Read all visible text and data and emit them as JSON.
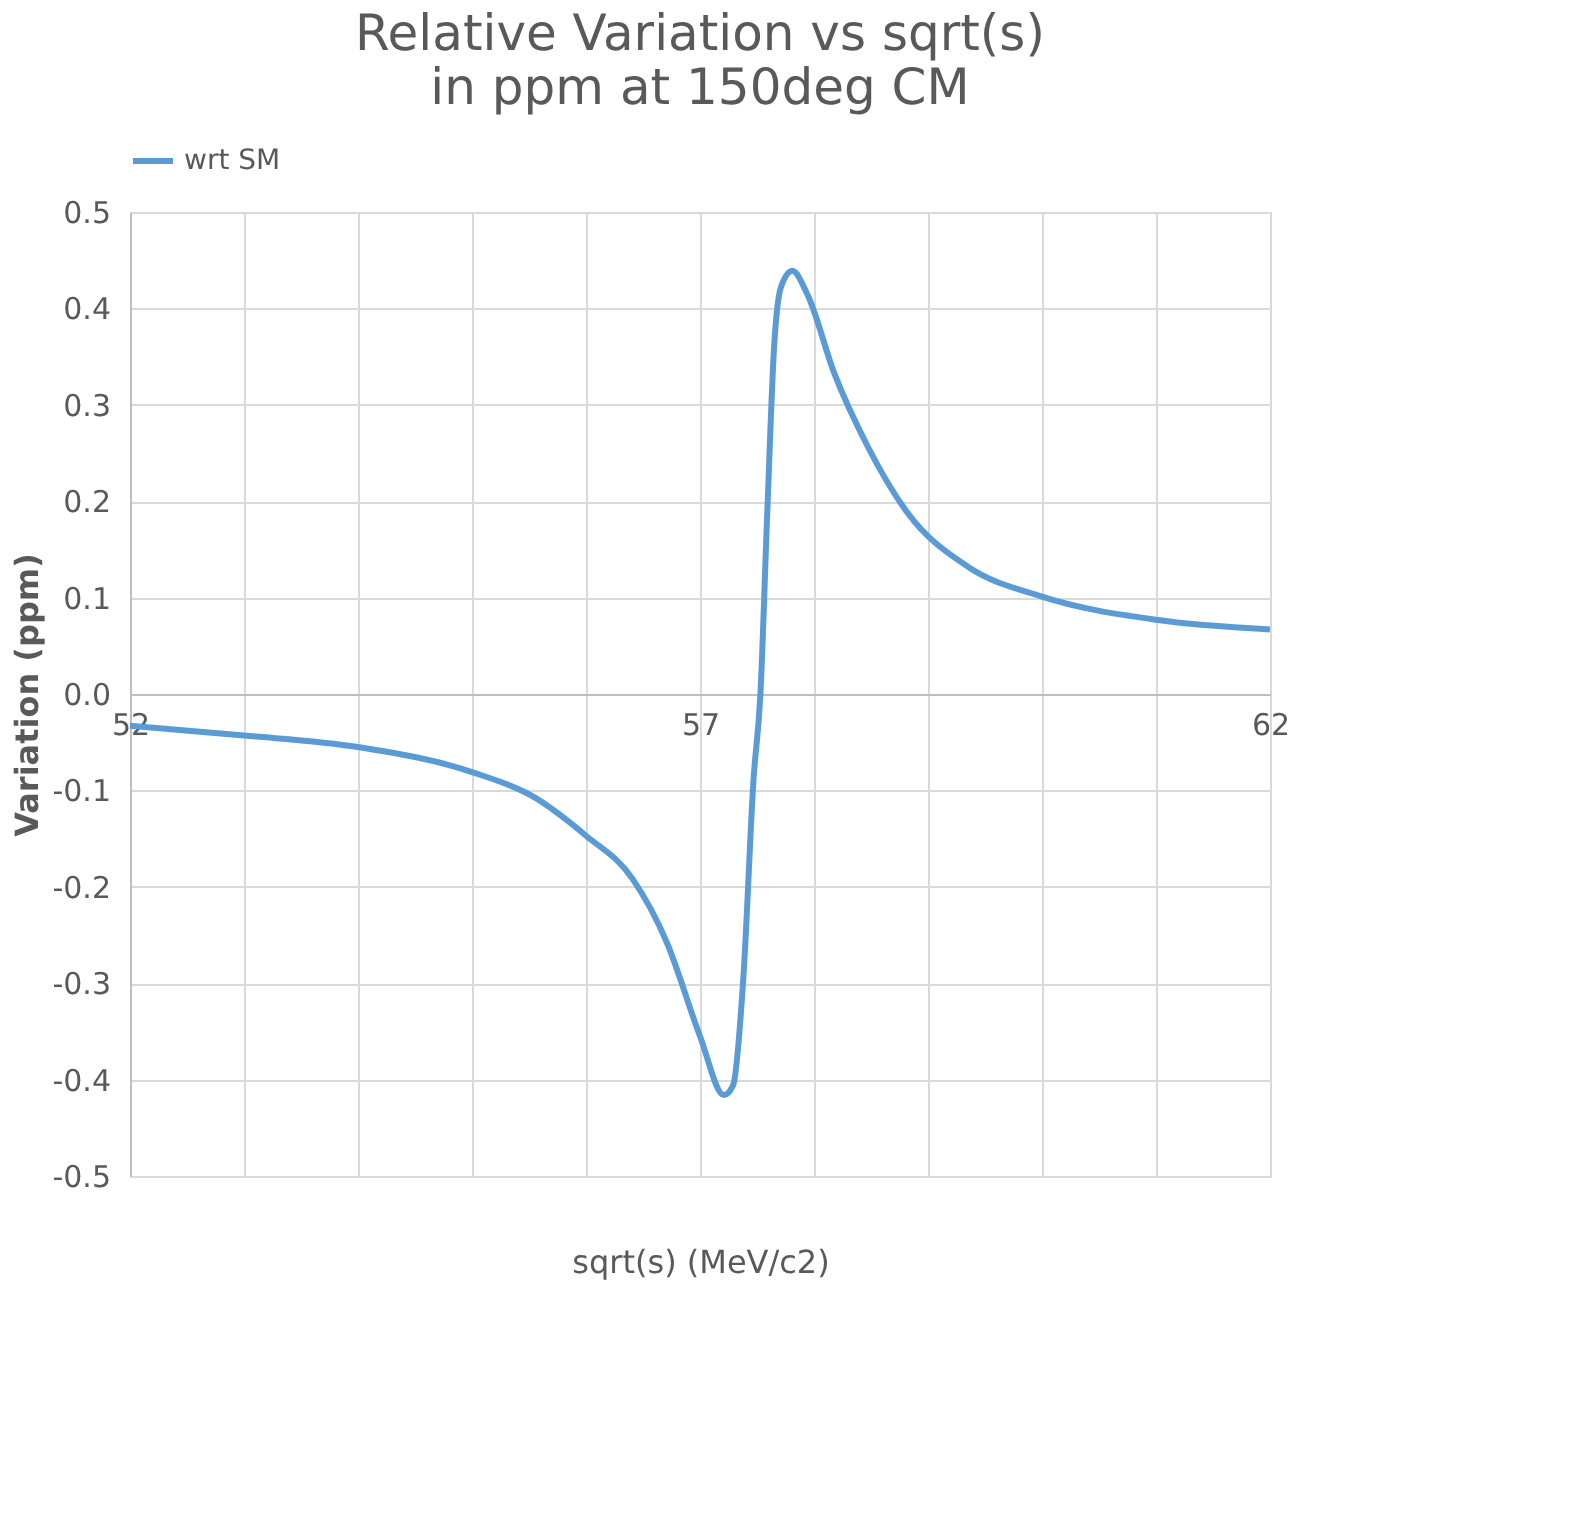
{
  "chart_data": {
    "type": "line",
    "title": [
      "Relative Variation vs sqrt(s)",
      "in ppm at 150deg CM"
    ],
    "xlabel": "sqrt(s) (MeV/c2)",
    "ylabel": "Variation (ppm)",
    "xlim": [
      52,
      62
    ],
    "xticks": [
      52,
      {
        "value": 53,
        "label": null
      },
      {
        "value": 54,
        "label": null
      },
      {
        "value": 55,
        "label": null
      },
      {
        "value": 56,
        "label": null
      },
      57,
      {
        "value": 58,
        "label": null
      },
      {
        "value": 59,
        "label": null
      },
      {
        "value": 60,
        "label": null
      },
      {
        "value": 61,
        "label": null
      },
      62
    ],
    "ylim": [
      -0.5,
      0.5
    ],
    "yticks": [
      -0.5,
      -0.4,
      -0.3,
      -0.2,
      -0.1,
      {
        "value": 0,
        "label": "0.0"
      },
      0.1,
      0.2,
      0.3,
      0.4,
      0.5
    ],
    "grid": true,
    "legend": "top",
    "marker": "none",
    "line_style": "solid",
    "series": [
      {
        "name": "wrt SM",
        "color": "#5b9bd5",
        "x": [
          52,
          53,
          54,
          55,
          55.53,
          56,
          56.41,
          56.71,
          57,
          57.21,
          57.29,
          57.38,
          57.47,
          57.53,
          57.59,
          57.65,
          57.71,
          57.81,
          57.94,
          58.18,
          58.47,
          58.82,
          59.35,
          60,
          61,
          62
        ],
        "values": [
          -0.033,
          -0.043,
          -0.055,
          -0.081,
          -0.106,
          -0.147,
          -0.192,
          -0.258,
          -0.355,
          -0.416,
          -0.406,
          -0.295,
          -0.088,
          0,
          0.188,
          0.36,
          0.422,
          0.439,
          0.415,
          0.332,
          0.257,
          0.188,
          0.132,
          0.101,
          0.077,
          0.067
        ]
      }
    ]
  }
}
